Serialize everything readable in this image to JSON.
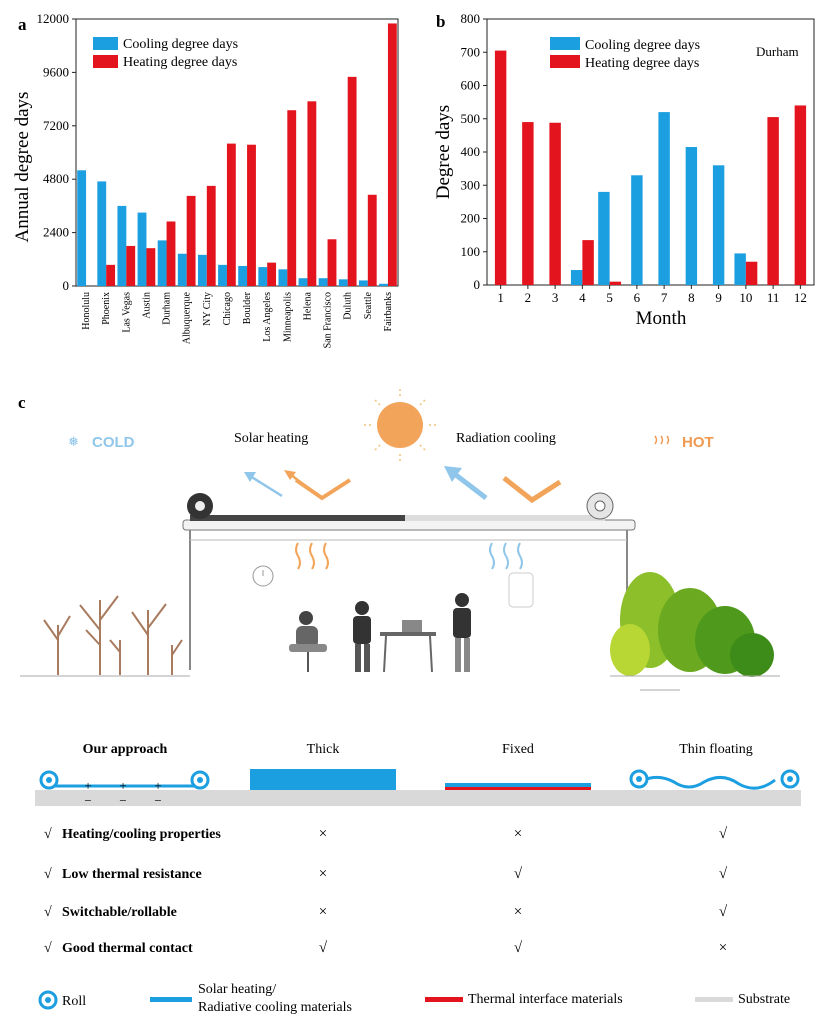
{
  "panel_labels": {
    "a": "a",
    "b": "b",
    "c": "c"
  },
  "chart_data": [
    {
      "type": "bar",
      "ylabel": "Annual degree days",
      "xlabel": "",
      "ylim": [
        0,
        12000
      ],
      "yticks": [
        "0",
        "2400",
        "4800",
        "7200",
        "9600",
        "12000"
      ],
      "categories": [
        "Honolulu",
        "Phoenix",
        "Las Vegas",
        "Austin",
        "Durham",
        "Albuquerque",
        "NY City",
        "Chicago",
        "Boulder",
        "Los Angeles",
        "Minneapolis",
        "Helena",
        "San Francisco",
        "Duluth",
        "Seattle",
        "Fairbanks"
      ],
      "series": [
        {
          "name": "Cooling degree days",
          "values": [
            5200,
            4700,
            3600,
            3300,
            2050,
            1450,
            1400,
            950,
            900,
            850,
            750,
            350,
            350,
            300,
            250,
            100
          ]
        },
        {
          "name": "Heating degree days",
          "values": [
            0,
            950,
            1800,
            1700,
            2900,
            4050,
            4500,
            6400,
            6350,
            1050,
            7900,
            8300,
            2100,
            9400,
            4100,
            11800
          ]
        }
      ],
      "legend": "top-left",
      "colors": {
        "cooling": "#1c9fe0",
        "heating": "#e3141d"
      }
    },
    {
      "type": "bar",
      "xlabel": "Month",
      "ylabel": "Degree days",
      "ylim": [
        0,
        800
      ],
      "yticks": [
        "0",
        "100",
        "200",
        "300",
        "400",
        "500",
        "600",
        "700",
        "800"
      ],
      "categories": [
        "1",
        "2",
        "3",
        "4",
        "5",
        "6",
        "7",
        "8",
        "9",
        "10",
        "11",
        "12"
      ],
      "series": [
        {
          "name": "Cooling degree days",
          "values": [
            0,
            0,
            0,
            45,
            280,
            330,
            520,
            415,
            360,
            95,
            0,
            0
          ]
        },
        {
          "name": "Heating degree days",
          "values": [
            705,
            490,
            488,
            135,
            10,
            0,
            0,
            0,
            0,
            70,
            505,
            540
          ]
        }
      ],
      "annotation": "Durham",
      "legend": "top-center",
      "colors": {
        "cooling": "#1c9fe0",
        "heating": "#e3141d"
      }
    }
  ],
  "illustration": {
    "cold_label": "COLD",
    "hot_label": "HOT",
    "solar_heating_label": "Solar heating",
    "radiation_cooling_label": "Radiation cooling"
  },
  "comparison": {
    "columns": [
      "Our approach",
      "Thick",
      "Fixed",
      "Thin floating"
    ],
    "rows": [
      {
        "label": "Heating/cooling properties",
        "marks": [
          "√",
          "×",
          "×",
          "√"
        ]
      },
      {
        "label": "Low thermal resistance",
        "marks": [
          "√",
          "×",
          "√",
          "√"
        ]
      },
      {
        "label": "Switchable/rollable",
        "marks": [
          "√",
          "×",
          "×",
          "√"
        ]
      },
      {
        "label": "Good thermal contact",
        "marks": [
          "√",
          "√",
          "√",
          "×"
        ]
      }
    ],
    "charges": {
      "plus": "+",
      "minus": "−"
    }
  },
  "legend_bottom": {
    "roll": "Roll",
    "materials_line1": "Solar heating/",
    "materials_line2": "Radiative cooling materials",
    "thermal_interface": "Thermal interface materials",
    "substrate": "Substrate"
  }
}
